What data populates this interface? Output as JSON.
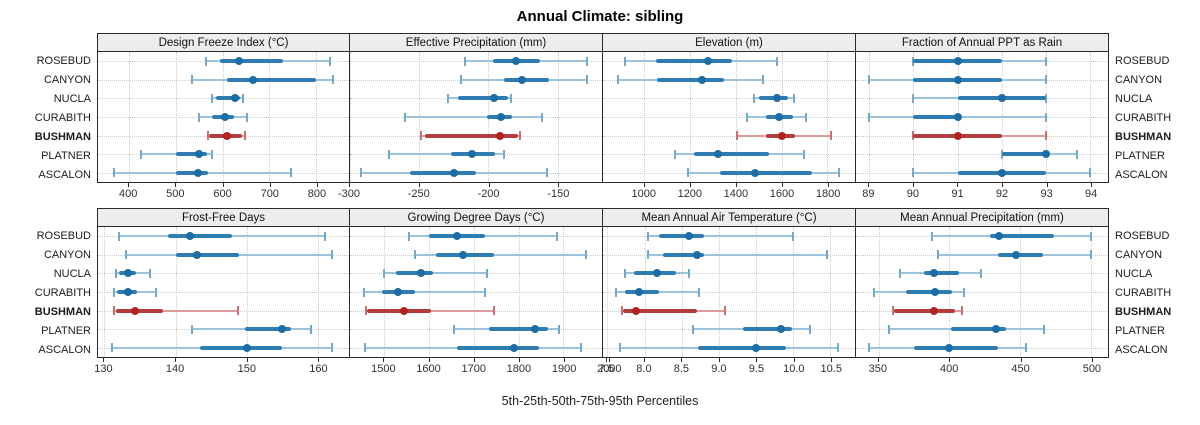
{
  "chart_data": {
    "type": "trellis-dotplot",
    "title": "Annual Climate: sibling",
    "caption": "5th-25th-50th-75th-95th Percentiles",
    "percentiles": [
      5,
      25,
      50,
      75,
      95
    ],
    "stations": [
      "ROSEBUD",
      "CANYON",
      "NUCLA",
      "CURABITH",
      "BUSHMAN",
      "PLATNER",
      "ASCALON"
    ],
    "highlight_station": "BUSHMAN",
    "layout": {
      "rows": 2,
      "cols": 4,
      "legend": "none",
      "grid": "dotted"
    },
    "colors": {
      "normal_dot": "#1c6ca6",
      "normal_band": "#2e7cb1",
      "normal_whisker": "#9cc4de",
      "normal_cap": "#74a9cc",
      "highlight_dot": "#b22222",
      "highlight_band": "#b43c3c",
      "highlight_whisker": "#d99b9b",
      "highlight_cap": "#cb7070",
      "grid": "#cccccc",
      "header_bg": "#ededed",
      "border": "#2a2a2a"
    },
    "panels": [
      {
        "title": "Design Freeze Index (°C)",
        "xlim": [
          334,
          870
        ],
        "tick_values": [
          400,
          500,
          600,
          700,
          800
        ],
        "tick_labels": [
          "400",
          "500",
          "600",
          "700",
          "800"
        ],
        "series": [
          {
            "station": "ROSEBUD",
            "p": [
              565,
              595,
              635,
              730,
              830
            ]
          },
          {
            "station": "CANYON",
            "p": [
              535,
              610,
              665,
              800,
              835
            ]
          },
          {
            "station": "NUCLA",
            "p": [
              578,
              586,
              627,
              638,
              643
            ]
          },
          {
            "station": "CURABITH",
            "p": [
              549,
              578,
              606,
              625,
              652
            ]
          },
          {
            "station": "BUSHMAN",
            "p": [
              568,
              572,
              609,
              641,
              648
            ]
          },
          {
            "station": "PLATNER",
            "p": [
              425,
              500,
              549,
              566,
              578
            ]
          },
          {
            "station": "ASCALON",
            "p": [
              368,
              500,
              548,
              568,
              746
            ]
          }
        ]
      },
      {
        "title": "Effective Precipitation (mm)",
        "xlim": [
          -300,
          -118
        ],
        "tick_values": [
          -300,
          -250,
          -200,
          -150
        ],
        "tick_labels": [
          "-300",
          "-250",
          "-200",
          "-150"
        ],
        "series": [
          {
            "station": "ROSEBUD",
            "p": [
              -217,
              -197,
              -180,
              -163,
              -129
            ]
          },
          {
            "station": "CANYON",
            "p": [
              -220,
              -189,
              -176,
              -156,
              -129
            ]
          },
          {
            "station": "NUCLA",
            "p": [
              -229,
              -222,
              -196,
              -186,
              -184
            ]
          },
          {
            "station": "CURABITH",
            "p": [
              -260,
              -201,
              -191,
              -183,
              -161
            ]
          },
          {
            "station": "BUSHMAN",
            "p": [
              -249,
              -246,
              -192,
              -179,
              -177
            ]
          },
          {
            "station": "PLATNER",
            "p": [
              -272,
              -227,
              -212,
              -195,
              -189
            ]
          },
          {
            "station": "ASCALON",
            "p": [
              -292,
              -257,
              -225,
              -209,
              -158
            ]
          }
        ]
      },
      {
        "title": "Elevation (m)",
        "xlim": [
          819,
          1921
        ],
        "tick_values": [
          1000,
          1200,
          1400,
          1600,
          1800
        ],
        "tick_labels": [
          "1000",
          "1200",
          "1400",
          "1600",
          "1800"
        ],
        "series": [
          {
            "station": "ROSEBUD",
            "p": [
              915,
              1050,
              1280,
              1385,
              1580
            ]
          },
          {
            "station": "CANYON",
            "p": [
              885,
              1055,
              1250,
              1350,
              1520
            ]
          },
          {
            "station": "NUCLA",
            "p": [
              1480,
              1500,
              1578,
              1630,
              1655
            ]
          },
          {
            "station": "CURABITH",
            "p": [
              1450,
              1530,
              1590,
              1650,
              1705
            ]
          },
          {
            "station": "BUSHMAN",
            "p": [
              1405,
              1530,
              1600,
              1660,
              1815
            ]
          },
          {
            "station": "PLATNER",
            "p": [
              1135,
              1215,
              1320,
              1545,
              1700
            ]
          },
          {
            "station": "ASCALON",
            "p": [
              1190,
              1330,
              1485,
              1735,
              1850
            ]
          }
        ]
      },
      {
        "title": "Fraction of Annual PPT as Rain",
        "xlim": [
          88.7,
          94.4
        ],
        "tick_values": [
          89,
          90,
          91,
          92,
          93,
          94
        ],
        "tick_labels": [
          "89",
          "90",
          "91",
          "92",
          "93",
          "94"
        ],
        "series": [
          {
            "station": "ROSEBUD",
            "p": [
              90,
              90,
              91,
              92,
              93
            ]
          },
          {
            "station": "CANYON",
            "p": [
              89,
              90,
              91,
              92,
              93
            ]
          },
          {
            "station": "NUCLA",
            "p": [
              90,
              91,
              92,
              93,
              93
            ]
          },
          {
            "station": "CURABITH",
            "p": [
              89,
              90,
              91,
              91,
              93
            ]
          },
          {
            "station": "BUSHMAN",
            "p": [
              90,
              90,
              91,
              92,
              93
            ]
          },
          {
            "station": "PLATNER",
            "p": [
              92,
              92,
              93,
              93,
              93.7
            ]
          },
          {
            "station": "ASCALON",
            "p": [
              90,
              91,
              92,
              93,
              94
            ]
          }
        ]
      },
      {
        "title": "Frost-Free Days",
        "xlim": [
          129.1,
          164.4
        ],
        "tick_values": [
          130,
          140,
          150,
          160
        ],
        "tick_labels": [
          "130",
          "140",
          "150",
          "160"
        ],
        "series": [
          {
            "station": "ROSEBUD",
            "p": [
              132,
              139,
              142,
              148,
              161
            ]
          },
          {
            "station": "CANYON",
            "p": [
              133,
              140,
              143,
              149,
              162
            ]
          },
          {
            "station": "NUCLA",
            "p": [
              131.7,
              132,
              133.3,
              134.5,
              136.4
            ]
          },
          {
            "station": "CURABITH",
            "p": [
              131.3,
              131.8,
              133.3,
              134.6,
              137.3
            ]
          },
          {
            "station": "BUSHMAN",
            "p": [
              131.4,
              131.6,
              134.3,
              138.3,
              148.8
            ]
          },
          {
            "station": "PLATNER",
            "p": [
              142.3,
              149.8,
              155,
              156.3,
              159
            ]
          },
          {
            "station": "ASCALON",
            "p": [
              131,
              143.4,
              150,
              155,
              162
            ]
          }
        ]
      },
      {
        "title": "Growing Degree Days (°C)",
        "xlim": [
          1424,
          1986
        ],
        "tick_values": [
          1500,
          1600,
          1700,
          1800,
          1900,
          2000
        ],
        "tick_labels": [
          "1500",
          "1600",
          "1700",
          "1800",
          "1900",
          "2000"
        ],
        "series": [
          {
            "station": "ROSEBUD",
            "p": [
              1555,
              1600,
              1662,
              1725,
              1885
            ]
          },
          {
            "station": "CANYON",
            "p": [
              1570,
              1615,
              1677,
              1745,
              1950
            ]
          },
          {
            "station": "NUCLA",
            "p": [
              1500,
              1527,
              1582,
              1610,
              1730
            ]
          },
          {
            "station": "CURABITH",
            "p": [
              1455,
              1495,
              1530,
              1570,
              1725
            ]
          },
          {
            "station": "BUSHMAN",
            "p": [
              1460,
              1463,
              1545,
              1605,
              1745
            ]
          },
          {
            "station": "PLATNER",
            "p": [
              1655,
              1733,
              1837,
              1866,
              1890
            ]
          },
          {
            "station": "ASCALON",
            "p": [
              1458,
              1663,
              1790,
              1845,
              1940
            ]
          }
        ]
      },
      {
        "title": "Mean Annual Air Temperature (°C)",
        "xlim": [
          7.44,
          10.83
        ],
        "tick_values": [
          7.5,
          8.0,
          8.5,
          9.0,
          9.5,
          10.0,
          10.5
        ],
        "tick_labels": [
          "7.5",
          "8.0",
          "8.5",
          "9.0",
          "9.5",
          "10.0",
          "10.5"
        ],
        "series": [
          {
            "station": "ROSEBUD",
            "p": [
              8.05,
              8.2,
              8.6,
              8.8,
              10.0
            ]
          },
          {
            "station": "CANYON",
            "p": [
              8.05,
              8.25,
              8.7,
              8.8,
              10.45
            ]
          },
          {
            "station": "NUCLA",
            "p": [
              7.74,
              7.86,
              8.17,
              8.42,
              8.6
            ]
          },
          {
            "station": "CURABITH",
            "p": [
              7.62,
              7.73,
              7.92,
              8.2,
              8.73
            ]
          },
          {
            "station": "BUSHMAN",
            "p": [
              7.69,
              7.71,
              7.89,
              8.7,
              9.08
            ]
          },
          {
            "station": "PLATNER",
            "p": [
              8.65,
              9.33,
              9.83,
              9.98,
              10.23
            ]
          },
          {
            "station": "ASCALON",
            "p": [
              7.67,
              8.72,
              9.5,
              9.9,
              10.6
            ]
          }
        ]
      },
      {
        "title": "Mean Annual Precipitation (mm)",
        "xlim": [
          334,
          512
        ],
        "tick_values": [
          350,
          400,
          450,
          500
        ],
        "tick_labels": [
          "350",
          "400",
          "450",
          "500"
        ],
        "series": [
          {
            "station": "ROSEBUD",
            "p": [
              388,
              429,
              435,
              474,
              500
            ]
          },
          {
            "station": "CANYON",
            "p": [
              392,
              434,
              447,
              466,
              500
            ]
          },
          {
            "station": "NUCLA",
            "p": [
              365,
              382,
              389,
              407,
              422
            ]
          },
          {
            "station": "CURABITH",
            "p": [
              347,
              369,
              390,
              402,
              410
            ]
          },
          {
            "station": "BUSHMAN",
            "p": [
              360,
              361,
              389,
              404,
              409
            ]
          },
          {
            "station": "PLATNER",
            "p": [
              357,
              401,
              433,
              440,
              467
            ]
          },
          {
            "station": "ASCALON",
            "p": [
              343,
              375,
              400,
              434,
              454
            ]
          }
        ]
      }
    ]
  }
}
